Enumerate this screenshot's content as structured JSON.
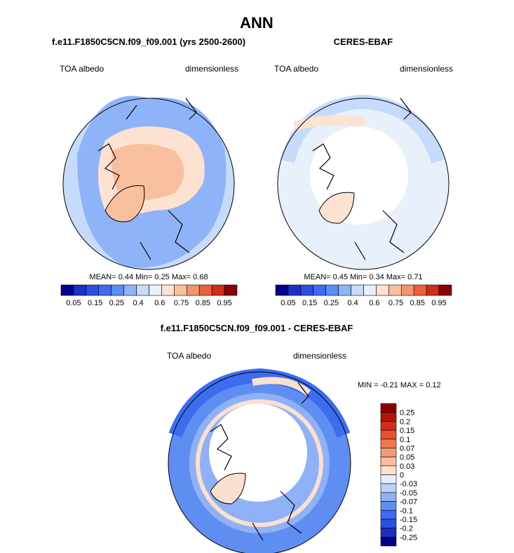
{
  "title": "ANN",
  "panels": [
    {
      "title": "f.e11.F1850C5CN.f09_f09.001 (yrs 2500-2600)",
      "left_label": "TOA albedo",
      "right_label": "dimensionless",
      "stats": [
        "MEAN=",
        "0.44",
        "Min=",
        "0.25",
        "Max=",
        "0.68"
      ]
    },
    {
      "title": "CERES-EBAF",
      "left_label": "TOA albedo",
      "right_label": "dimensionless",
      "stats": [
        "MEAN=",
        "0.45",
        "Min=",
        "0.34",
        "Max=",
        "0.71"
      ]
    }
  ],
  "colorbar": {
    "colors": [
      "#00008b",
      "#1c30c4",
      "#2c4fe0",
      "#3f6cf0",
      "#5c8cf5",
      "#8fb3f8",
      "#c6dbfa",
      "#e8f0fb",
      "#fde2d1",
      "#f8bf9f",
      "#f29570",
      "#e9623f",
      "#cf2e1a",
      "#8b0000"
    ],
    "labels": [
      "0.05",
      "0.15",
      "0.25",
      "0.4",
      "0.6",
      "0.75",
      "0.85",
      "0.95"
    ]
  },
  "difference": {
    "title": "f.e11.F1850C5CN.f09_f09.001 - CERES-EBAF",
    "left_label": "TOA albedo",
    "right_label": "dimensionless",
    "stats": [
      "MIN =",
      "-0.21",
      "MAX =",
      "0.12"
    ],
    "colorbar": {
      "colors": [
        "#8b0000",
        "#b3140c",
        "#d22d19",
        "#e8502f",
        "#f07650",
        "#f49a75",
        "#f8bd9e",
        "#fce0cf",
        "#e6eefb",
        "#bcd2f8",
        "#8fb1f6",
        "#5f8ef3",
        "#3d6cef",
        "#2a4fe0",
        "#1a30c0",
        "#00008b"
      ],
      "labels": [
        "0.25",
        "0.2",
        "0.15",
        "0.1",
        "0.07",
        "0.05",
        "0.03",
        "0",
        "-0.03",
        "-0.05",
        "-0.07",
        "-0.1",
        "-0.15",
        "-0.2",
        "-0.25"
      ]
    }
  }
}
